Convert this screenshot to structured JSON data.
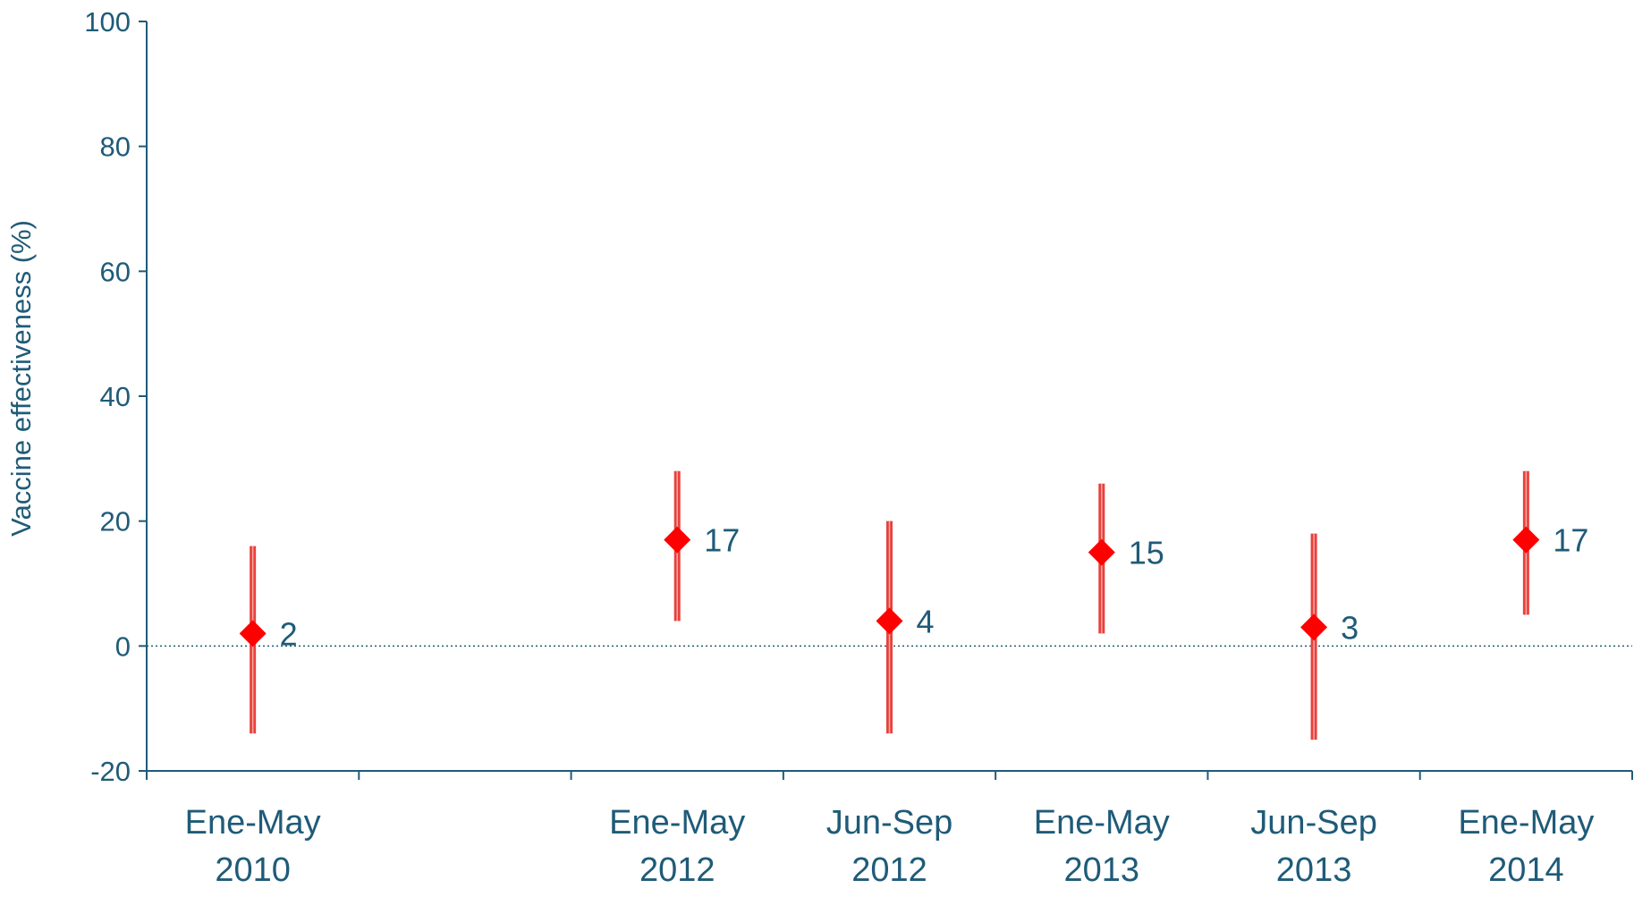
{
  "chart_data": {
    "type": "scatter",
    "title": "",
    "xlabel": "",
    "ylabel": "Vaccine effectiveness (%)",
    "ylim": [
      -20,
      100
    ],
    "yticks": [
      -20,
      0,
      20,
      40,
      60,
      80,
      100
    ],
    "reference_line": {
      "y": 0,
      "style": "dotted"
    },
    "grid": false,
    "legend": "none",
    "categories": [
      {
        "line1": "Ene-May",
        "line2": "2010"
      },
      {
        "line1": "",
        "line2": ""
      },
      {
        "line1": "Ene-May",
        "line2": "2012"
      },
      {
        "line1": "Jun-Sep",
        "line2": "2012"
      },
      {
        "line1": "Ene-May",
        "line2": "2013"
      },
      {
        "line1": "Jun-Sep",
        "line2": "2013"
      },
      {
        "line1": "Ene-May",
        "line2": "2014"
      }
    ],
    "series": [
      {
        "marker": "diamond",
        "values": [
          2,
          null,
          17,
          4,
          15,
          3,
          17
        ],
        "ci_lower": [
          -14,
          null,
          4,
          -14,
          2,
          -15,
          5
        ],
        "ci_upper": [
          16,
          null,
          28,
          20,
          26,
          18,
          28
        ],
        "labels": [
          "2",
          "",
          "17",
          "4",
          "15",
          "3",
          "17"
        ]
      }
    ],
    "colors": {
      "axis": "#1f5b78",
      "text": "#1f5b78",
      "marker": "#ff0000",
      "error_bar": "#e8413c",
      "reference_line": "#1f5b78"
    }
  }
}
